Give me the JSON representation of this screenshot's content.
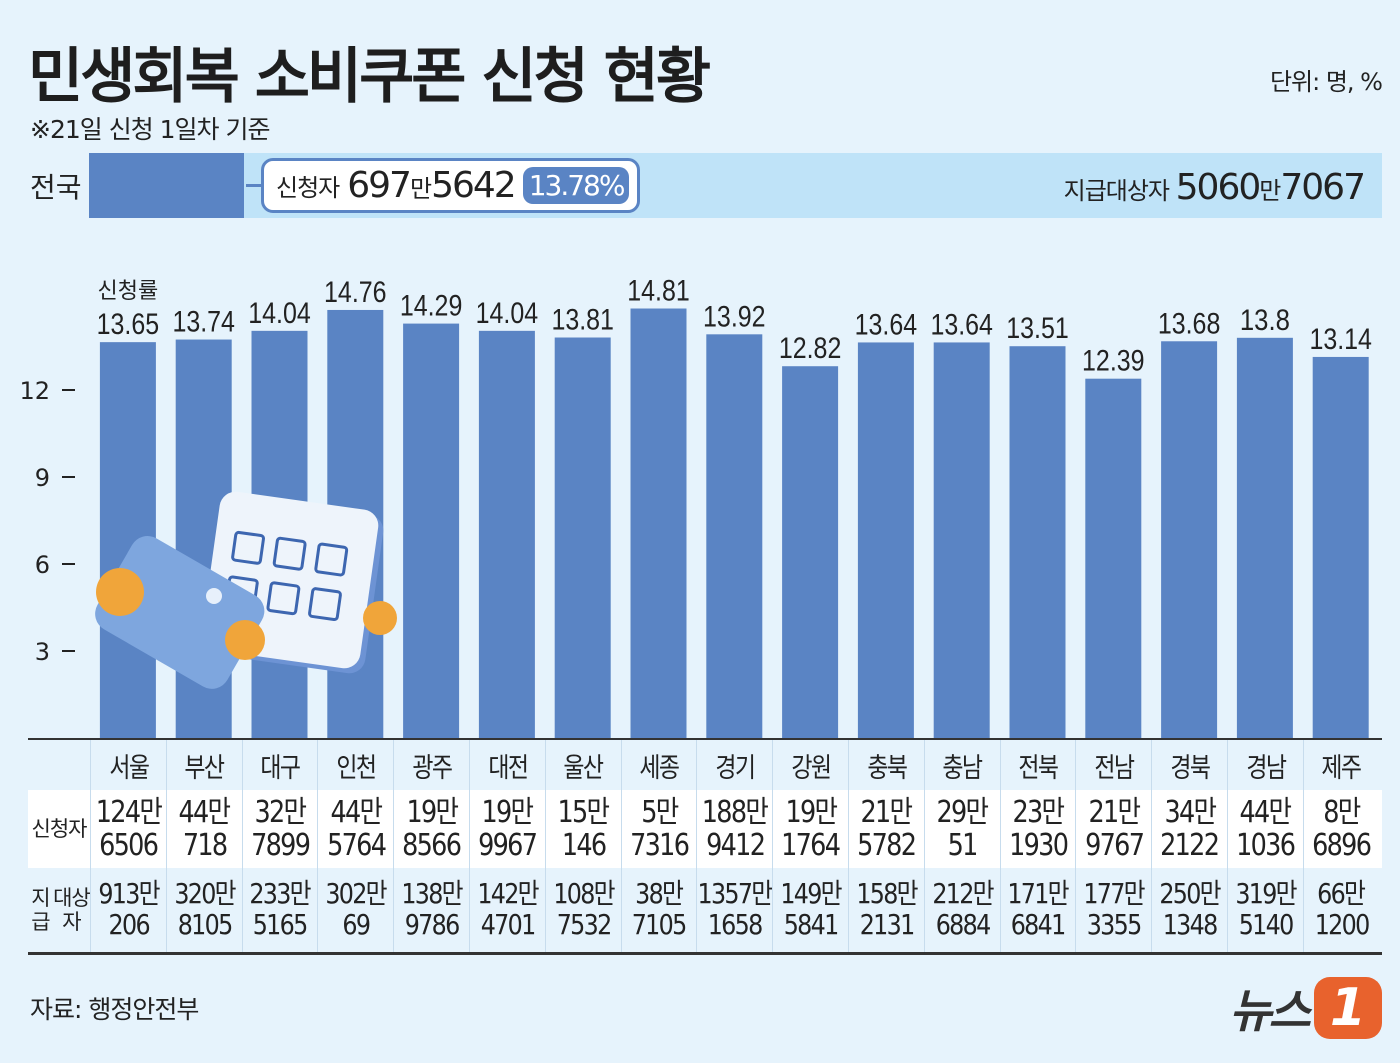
{
  "title": "민생회복 소비쿠폰 신청 현황",
  "subtitle": "※21일 신청 1일차 기준",
  "unit": "단위: 명, %",
  "national": {
    "label": "전국",
    "applicants_label": "신청자",
    "applicants_man": "697",
    "applicants_rest": "5642",
    "rate": "13.78%",
    "rate_value": 13.78,
    "target_label": "지급대상자",
    "target_man": "5060",
    "target_rest": "7067",
    "man": "만"
  },
  "chart_data": {
    "type": "bar",
    "title": "",
    "rate_label": "신청률",
    "categories": [
      "서울",
      "부산",
      "대구",
      "인천",
      "광주",
      "대전",
      "울산",
      "세종",
      "경기",
      "강원",
      "충북",
      "충남",
      "전북",
      "전남",
      "경북",
      "경남",
      "제주"
    ],
    "values": [
      13.65,
      13.74,
      14.04,
      14.76,
      14.29,
      14.04,
      13.81,
      14.81,
      13.92,
      12.82,
      13.64,
      13.64,
      13.51,
      12.39,
      13.68,
      13.8,
      13.14
    ],
    "value_labels": [
      "13.65",
      "13.74",
      "14.04",
      "14.76",
      "14.29",
      "14.04",
      "13.81",
      "14.81",
      "13.92",
      "12.82",
      "13.64",
      "13.64",
      "13.51",
      "12.39",
      "13.68",
      "13.8",
      "13.14"
    ],
    "yticks": [
      3,
      6,
      9,
      12
    ],
    "ylim": [
      0,
      16
    ],
    "bar_color": "#5a84c4"
  },
  "table": {
    "applicants_label": "신청자",
    "target_label_1": "지급",
    "target_label_2": "대상자",
    "applicants": [
      [
        "124만",
        "6506"
      ],
      [
        "44만",
        "718"
      ],
      [
        "32만",
        "7899"
      ],
      [
        "44만",
        "5764"
      ],
      [
        "19만",
        "8566"
      ],
      [
        "19만",
        "9967"
      ],
      [
        "15만",
        "146"
      ],
      [
        "5만",
        "7316"
      ],
      [
        "188만",
        "9412"
      ],
      [
        "19만",
        "1764"
      ],
      [
        "21만",
        "5782"
      ],
      [
        "29만",
        "51"
      ],
      [
        "23만",
        "1930"
      ],
      [
        "21만",
        "9767"
      ],
      [
        "34만",
        "2122"
      ],
      [
        "44만",
        "1036"
      ],
      [
        "8만",
        "6896"
      ]
    ],
    "targets": [
      [
        "913만",
        "206"
      ],
      [
        "320만",
        "8105"
      ],
      [
        "233만",
        "5165"
      ],
      [
        "302만",
        "69"
      ],
      [
        "138만",
        "9786"
      ],
      [
        "142만",
        "4701"
      ],
      [
        "108만",
        "7532"
      ],
      [
        "38만",
        "7105"
      ],
      [
        "1357만",
        "1658"
      ],
      [
        "149만",
        "5841"
      ],
      [
        "158만",
        "2131"
      ],
      [
        "212만",
        "6884"
      ],
      [
        "171만",
        "6841"
      ],
      [
        "177만",
        "3355"
      ],
      [
        "250만",
        "1348"
      ],
      [
        "319만",
        "5140"
      ],
      [
        "66만",
        "1200"
      ]
    ]
  },
  "source": "자료: 행정안전부",
  "logo": {
    "text": "뉴스",
    "num": "1"
  }
}
